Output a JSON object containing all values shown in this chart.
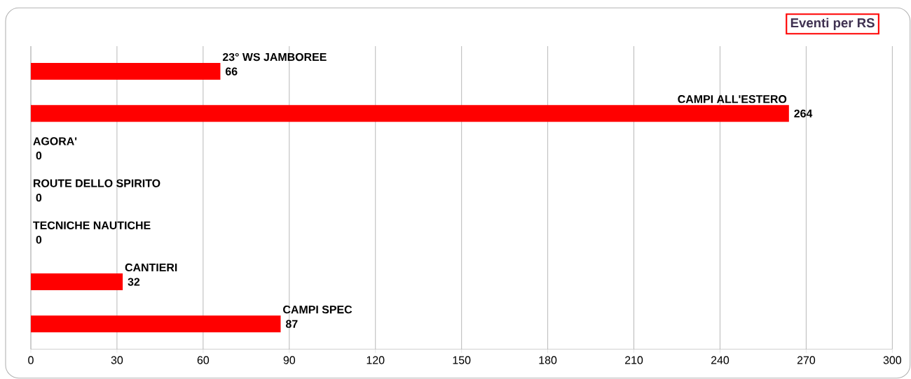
{
  "chart_data": {
    "type": "bar",
    "orientation": "horizontal",
    "title": "Eventi per RS",
    "categories": [
      "23° WS JAMBOREE",
      "CAMPI ALL'ESTERO",
      "AGORA'",
      "ROUTE DELLO SPIRITO",
      "TECNICHE NAUTICHE",
      "CANTIERI",
      "CAMPI SPEC"
    ],
    "values": [
      66,
      264,
      0,
      0,
      0,
      32,
      87
    ],
    "color": "#ff0000",
    "xlim": [
      0,
      300
    ],
    "xticks": [
      0,
      30,
      60,
      90,
      120,
      150,
      180,
      210,
      240,
      270,
      300
    ],
    "grid": "x",
    "data_labels": true,
    "tick_labels": "x"
  }
}
